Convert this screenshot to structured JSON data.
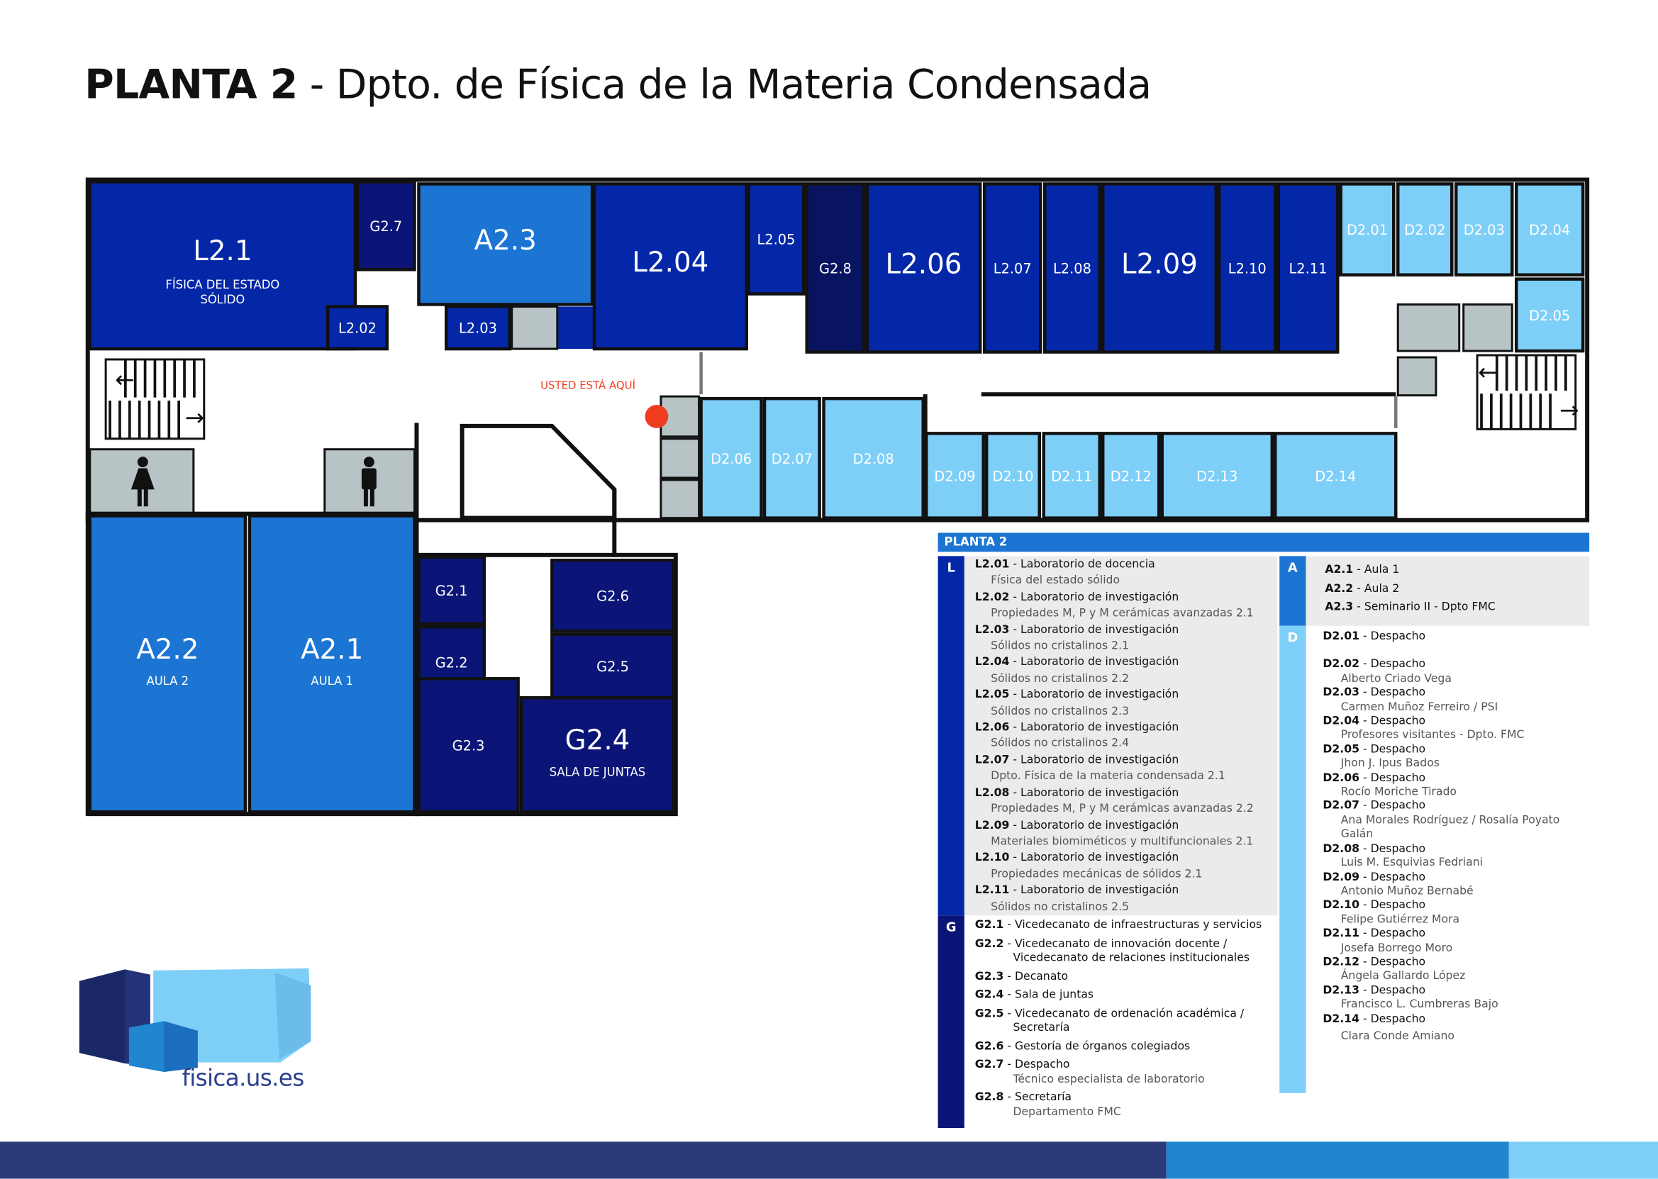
{
  "title": {
    "bold": "PLANTA 2",
    "rest": " - Dpto. de Física de la Materia Condensada"
  },
  "colors": {
    "lab": "#0427a8",
    "gov": "#0b1577",
    "gov_dark": "#081460",
    "aula": "#1c75d3",
    "despacho": "#7ecff8",
    "service": "#b7c3c5",
    "marker": "#f03c1e",
    "footer": [
      "#2b3a78",
      "#2186d0",
      "#7ecff8"
    ]
  },
  "map": {
    "you_are_here": "USTED ESTÁ AQUÍ",
    "rooms": [
      {
        "id": "L2.1",
        "label": "L2.1",
        "sub": "FÍSICA DEL ESTADO SÓLIDO",
        "type": "lab"
      },
      {
        "id": "G2.7",
        "label": "G2.7",
        "type": "gov"
      },
      {
        "id": "L2.02",
        "label": "L2.02",
        "type": "lab"
      },
      {
        "id": "A2.3",
        "label": "A2.3",
        "type": "aula"
      },
      {
        "id": "L2.03",
        "label": "L2.03",
        "type": "lab"
      },
      {
        "id": "L2.04",
        "label": "L2.04",
        "type": "lab"
      },
      {
        "id": "L2.05",
        "label": "L2.05",
        "type": "lab"
      },
      {
        "id": "G2.8",
        "label": "G2.8",
        "type": "gov_dark"
      },
      {
        "id": "L2.06",
        "label": "L2.06",
        "type": "lab"
      },
      {
        "id": "L2.07",
        "label": "L2.07",
        "type": "lab"
      },
      {
        "id": "L2.08",
        "label": "L2.08",
        "type": "lab"
      },
      {
        "id": "L2.09",
        "label": "L2.09",
        "type": "lab"
      },
      {
        "id": "L2.10",
        "label": "L2.10",
        "type": "lab"
      },
      {
        "id": "L2.11",
        "label": "L2.11",
        "type": "lab"
      },
      {
        "id": "D2.01",
        "label": "D2.01",
        "type": "despacho"
      },
      {
        "id": "D2.02",
        "label": "D2.02",
        "type": "despacho"
      },
      {
        "id": "D2.03",
        "label": "D2.03",
        "type": "despacho"
      },
      {
        "id": "D2.04",
        "label": "D2.04",
        "type": "despacho"
      },
      {
        "id": "D2.05",
        "label": "D2.05",
        "type": "despacho"
      },
      {
        "id": "D2.06",
        "label": "D2.06",
        "type": "despacho"
      },
      {
        "id": "D2.07",
        "label": "D2.07",
        "type": "despacho"
      },
      {
        "id": "D2.08",
        "label": "D2.08",
        "type": "despacho"
      },
      {
        "id": "D2.09",
        "label": "D2.09",
        "type": "despacho"
      },
      {
        "id": "D2.10",
        "label": "D2.10",
        "type": "despacho"
      },
      {
        "id": "D2.11",
        "label": "D2.11",
        "type": "despacho"
      },
      {
        "id": "D2.12",
        "label": "D2.12",
        "type": "despacho"
      },
      {
        "id": "D2.13",
        "label": "D2.13",
        "type": "despacho"
      },
      {
        "id": "D2.14",
        "label": "D2.14",
        "type": "despacho"
      },
      {
        "id": "A2.2",
        "label": "A2.2",
        "sub": "AULA 2",
        "type": "aula"
      },
      {
        "id": "A2.1",
        "label": "A2.1",
        "sub": "AULA 1",
        "type": "aula"
      },
      {
        "id": "G2.1",
        "label": "G2.1",
        "type": "gov"
      },
      {
        "id": "G2.2",
        "label": "G2.2",
        "type": "gov"
      },
      {
        "id": "G2.3",
        "label": "G2.3",
        "type": "gov"
      },
      {
        "id": "G2.4",
        "label": "G2.4",
        "sub": "SALA DE JUNTAS",
        "type": "gov"
      },
      {
        "id": "G2.5",
        "label": "G2.5",
        "type": "gov"
      },
      {
        "id": "G2.6",
        "label": "G2.6",
        "type": "gov"
      }
    ]
  },
  "legend": {
    "header": "PLANTA 2",
    "L": {
      "letter": "L",
      "items": [
        {
          "code": "L2.01",
          "title": " - Laboratorio de docencia",
          "sub": "Física del estado sólido"
        },
        {
          "code": "L2.02",
          "title": " - Laboratorio de investigación",
          "sub": "Propiedades M, P y M cerámicas avanzadas 2.1"
        },
        {
          "code": "L2.03",
          "title": " - Laboratorio de investigación",
          "sub": "Sólidos no cristalinos 2.1"
        },
        {
          "code": "L2.04",
          "title": " - Laboratorio de investigación",
          "sub": "Sólidos no cristalinos 2.2"
        },
        {
          "code": "L2.05",
          "title": " - Laboratorio de investigación",
          "sub": "Sólidos no cristalinos 2.3"
        },
        {
          "code": "L2.06",
          "title": " - Laboratorio de investigación",
          "sub": "Sólidos no cristalinos 2.4"
        },
        {
          "code": "L2.07",
          "title": " - Laboratorio de investigación",
          "sub": "Dpto. Física de la materia condensada 2.1"
        },
        {
          "code": "L2.08",
          "title": " - Laboratorio de investigación",
          "sub": "Propiedades M, P y M cerámicas avanzadas 2.2"
        },
        {
          "code": "L2.09",
          "title": " - Laboratorio de investigación",
          "sub": "Materiales biomiméticos y multifuncionales 2.1"
        },
        {
          "code": "L2.10",
          "title": " - Laboratorio de investigación",
          "sub": "Propiedades mecánicas de sólidos 2.1"
        },
        {
          "code": "L2.11",
          "title": " - Laboratorio de investigación",
          "sub": "Sólidos no cristalinos 2.5"
        }
      ]
    },
    "G": {
      "letter": "G",
      "items": [
        {
          "code": "G2.1",
          "title": " - Vicedecanato de infraestructuras y servicios"
        },
        {
          "code": "G2.2",
          "title": " - Vicedecanato de innovación docente /",
          "cont": "Vicedecanato de relaciones institucionales"
        },
        {
          "code": "G2.3",
          "title": " - Decanato"
        },
        {
          "code": "G2.4",
          "title": " - Sala de juntas"
        },
        {
          "code": "G2.5",
          "title": " - Vicedecanato de ordenación académica /",
          "cont": "Secretaría"
        },
        {
          "code": "G2.6",
          "title": " - Gestoría de órganos colegiados"
        },
        {
          "code": "G2.7",
          "title": " - Despacho",
          "sub": "Técnico especialista de laboratorio"
        },
        {
          "code": "G2.8",
          "title": " - Secretaría",
          "sub": "Departamento FMC"
        }
      ]
    },
    "A": {
      "letter": "A",
      "items": [
        {
          "code": "A2.1",
          "title": " - Aula 1"
        },
        {
          "code": "A2.2",
          "title": " - Aula 2"
        },
        {
          "code": "A2.3",
          "title": " - Seminario II - Dpto FMC"
        }
      ]
    },
    "D": {
      "letter": "D",
      "items": [
        {
          "code": "D2.01",
          "title": " - Despacho"
        },
        {
          "code": "D2.02",
          "title": " - Despacho",
          "sub": "Alberto Criado Vega"
        },
        {
          "code": "D2.03",
          "title": " - Despacho",
          "sub": "Carmen Muñoz Ferreiro / PSI"
        },
        {
          "code": "D2.04",
          "title": " - Despacho",
          "sub": "Profesores visitantes - Dpto. FMC"
        },
        {
          "code": "D2.05",
          "title": " - Despacho",
          "sub": "Jhon J. Ipus Bados"
        },
        {
          "code": "D2.06",
          "title": " - Despacho",
          "sub": "Rocío Moriche Tirado"
        },
        {
          "code": "D2.07",
          "title": " - Despacho",
          "sub": "Ana Morales Rodríguez / Rosalía Poyato",
          "sub2": "Galán"
        },
        {
          "code": "D2.08",
          "title": " - Despacho",
          "sub": "Luis M. Esquivias Fedriani"
        },
        {
          "code": "D2.09",
          "title": " - Despacho",
          "sub": "Antonio Muñoz Bernabé"
        },
        {
          "code": "D2.10",
          "title": " - Despacho",
          "sub": "Felipe Gutiérrez Mora"
        },
        {
          "code": "D2.11",
          "title": " - Despacho",
          "sub": "Josefa Borrego Moro"
        },
        {
          "code": "D2.12",
          "title": " - Despacho",
          "sub": "Ángela Gallardo López"
        },
        {
          "code": "D2.13",
          "title": " - Despacho",
          "sub": "Francisco L. Cumbreras Bajo"
        },
        {
          "code": "D2.14",
          "title": " - Despacho",
          "sub": "Clara Conde Amiano"
        }
      ]
    }
  },
  "logo": {
    "text": "fisica.us.es"
  }
}
